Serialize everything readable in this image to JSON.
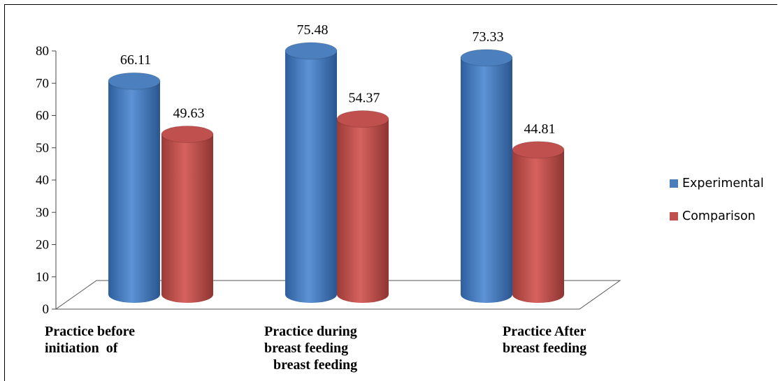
{
  "chart_data": {
    "type": "bar",
    "style": "3d-cylinder",
    "categories": [
      [
        "Practice before",
        "initiation  of"
      ],
      [
        "Practice during",
        "breast feeding",
        "breast feeding"
      ],
      [
        "Practice After",
        "breast feeding"
      ]
    ],
    "series": [
      {
        "name": "Experimental",
        "color": "#4a7ebb",
        "values": [
          66.11,
          75.48,
          73.33
        ]
      },
      {
        "name": "Comparison",
        "color": "#c0504d",
        "values": [
          49.63,
          54.37,
          44.81
        ]
      }
    ],
    "data_labels": {
      "Experimental": [
        "66.11",
        "75.48",
        "73.33"
      ],
      "Comparison": [
        "49.63",
        "54.37",
        "44.81"
      ]
    },
    "yticks": [
      "0",
      "10",
      "20",
      "30",
      "40",
      "50",
      "60",
      "70",
      "80"
    ],
    "ylim": [
      0,
      80
    ],
    "legend_position": "right"
  }
}
